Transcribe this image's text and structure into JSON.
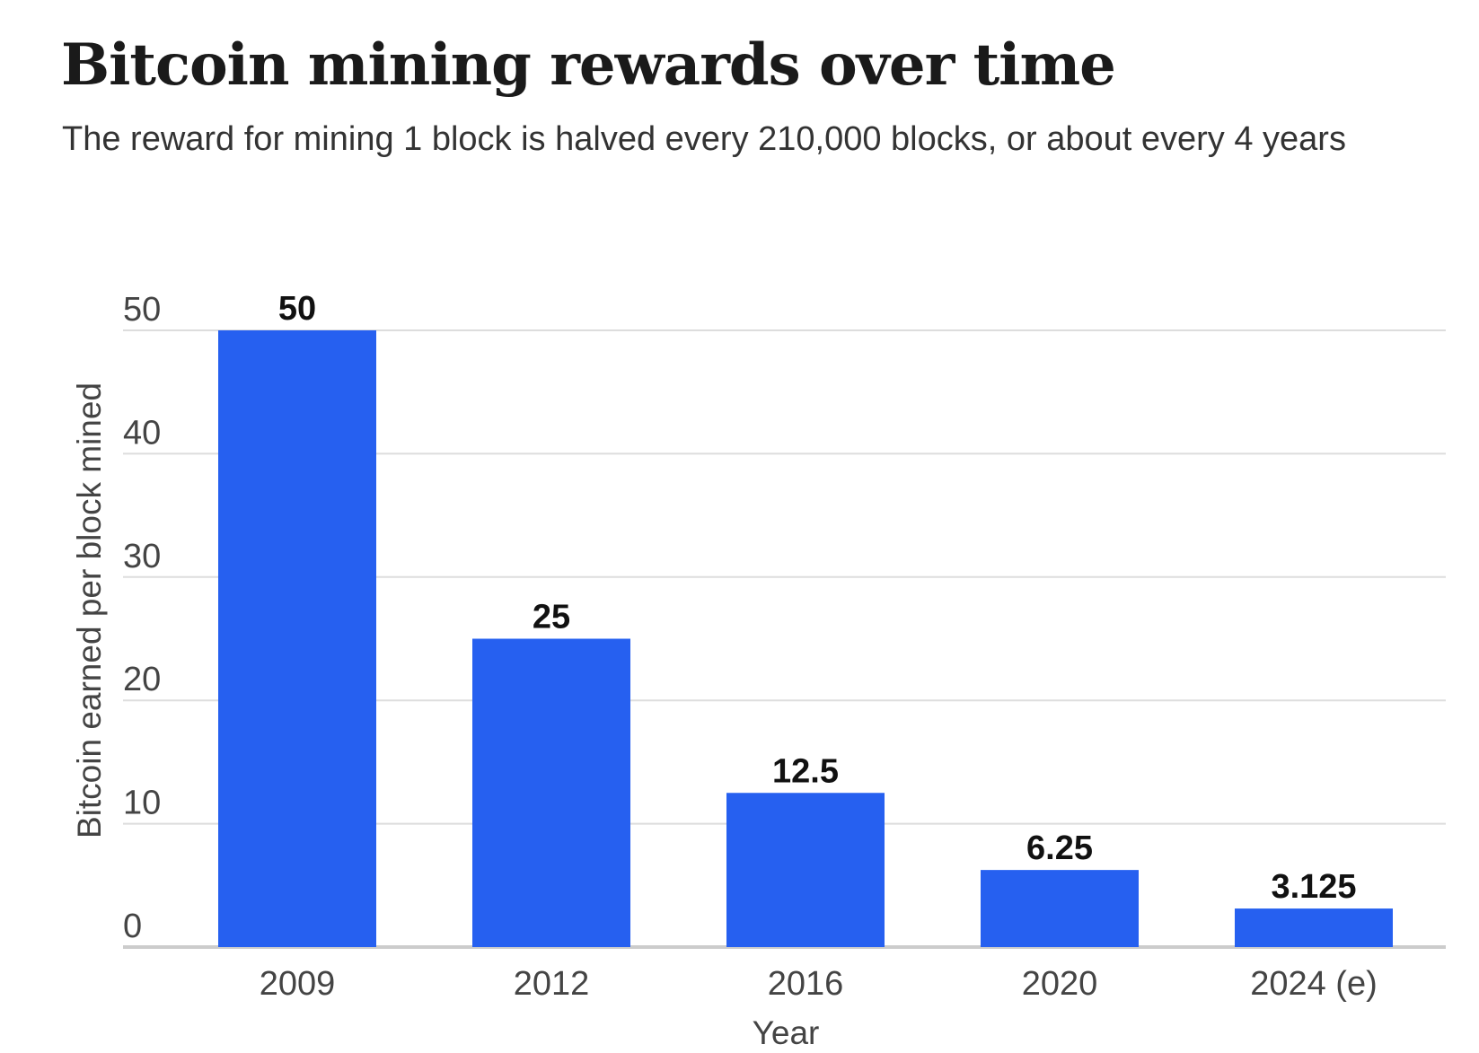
{
  "chart_data": {
    "type": "bar",
    "title": "Bitcoin mining rewards over time",
    "subtitle": "The reward for mining 1 block is halved every 210,000 blocks, or about every 4 years",
    "categories": [
      "2009",
      "2012",
      "2016",
      "2020",
      "2024 (e)"
    ],
    "values": [
      50,
      25,
      12.5,
      6.25,
      3.125
    ],
    "data_labels": [
      "50",
      "25",
      "12.5",
      "6.25",
      "3.125"
    ],
    "xlabel": "Year",
    "ylabel": "Bitcoin earned per block mined",
    "ylim": [
      0,
      50
    ],
    "yticks": [
      0,
      10,
      20,
      30,
      40,
      50
    ],
    "grid": true,
    "legend": "none",
    "colors": {
      "bar": "#2660f0",
      "grid": "#dddddd",
      "baseline": "#cccccc"
    }
  }
}
